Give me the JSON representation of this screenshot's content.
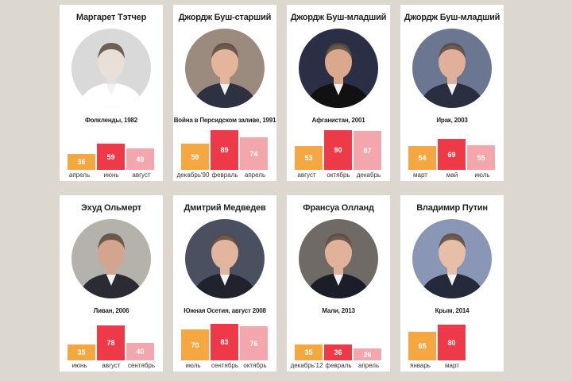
{
  "colors": {
    "bar1": "#f5a742",
    "bar2": "#ee3a48",
    "bar3": "#f3a6ab",
    "background": "#ddd8cf"
  },
  "chart_data": [
    {
      "type": "bar",
      "title": "Маргарет Тэтчер",
      "subtitle": "Фолкленды, 1982",
      "categories": [
        "апрель",
        "июнь",
        "август"
      ],
      "values": [
        36,
        59,
        49
      ],
      "ylim": [
        0,
        100
      ]
    },
    {
      "type": "bar",
      "title": "Джордж Буш-старший",
      "subtitle": "Война в Персидском заливе, 1991",
      "categories": [
        "декабрь'90",
        "февраль",
        "апрель"
      ],
      "values": [
        59,
        89,
        74
      ],
      "ylim": [
        0,
        100
      ]
    },
    {
      "type": "bar",
      "title": "Джордж Буш-младший",
      "subtitle": "Афганистан, 2001",
      "categories": [
        "август",
        "октябрь",
        "декабрь"
      ],
      "values": [
        53,
        90,
        87
      ],
      "ylim": [
        0,
        100
      ]
    },
    {
      "type": "bar",
      "title": "Джордж Буш-младший",
      "subtitle": "Ирак, 2003",
      "categories": [
        "март",
        "май",
        "июль"
      ],
      "values": [
        54,
        69,
        55
      ],
      "ylim": [
        0,
        100
      ]
    },
    {
      "type": "bar",
      "title": "Эхуд Ольмерт",
      "subtitle": "Ливан, 2006",
      "categories": [
        "июнь",
        "август",
        "сентябрь"
      ],
      "values": [
        35,
        78,
        40
      ],
      "ylim": [
        0,
        100
      ]
    },
    {
      "type": "bar",
      "title": "Дмитрий Медведев",
      "subtitle": "Южная Осетия, август 2008",
      "categories": [
        "июль",
        "сентябрь",
        "октябрь"
      ],
      "values": [
        70,
        83,
        76
      ],
      "ylim": [
        0,
        100
      ]
    },
    {
      "type": "bar",
      "title": "Франсуа Олланд",
      "subtitle": "Мали, 2013",
      "categories": [
        "декабрь'12",
        "февраль",
        "апрель"
      ],
      "values": [
        35,
        36,
        26
      ],
      "ylim": [
        0,
        100
      ]
    },
    {
      "type": "bar",
      "title": "Владимир Путин",
      "subtitle": "Крым, 2014",
      "categories": [
        "январь",
        "март"
      ],
      "values": [
        65,
        80
      ],
      "ylim": [
        0,
        100
      ]
    }
  ]
}
